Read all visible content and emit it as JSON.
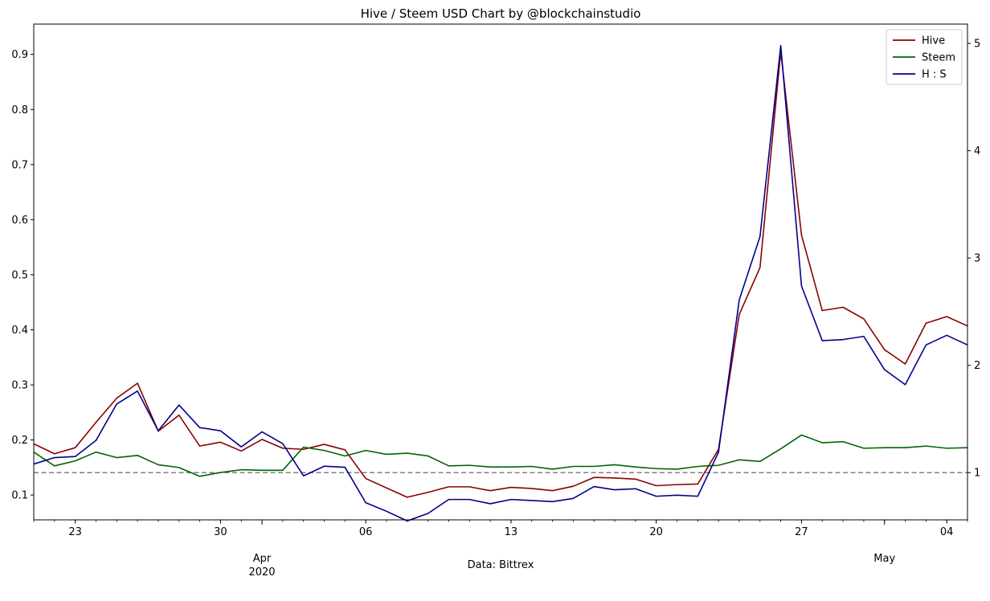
{
  "chart_data": {
    "type": "line",
    "title": "Hive / Steem USD Chart by @blockchainstudio",
    "xlabel": "Data: Bittrex",
    "ylabel": "",
    "y2label": "",
    "grid": false,
    "legend_position": "top-right",
    "x_start": "2020-03-21",
    "x_end": "2020-05-05",
    "x": [
      "2020-03-21",
      "2020-03-22",
      "2020-03-23",
      "2020-03-24",
      "2020-03-25",
      "2020-03-26",
      "2020-03-27",
      "2020-03-28",
      "2020-03-29",
      "2020-03-30",
      "2020-03-31",
      "2020-04-01",
      "2020-04-02",
      "2020-04-03",
      "2020-04-04",
      "2020-04-05",
      "2020-04-06",
      "2020-04-07",
      "2020-04-08",
      "2020-04-09",
      "2020-04-10",
      "2020-04-11",
      "2020-04-12",
      "2020-04-13",
      "2020-04-14",
      "2020-04-15",
      "2020-04-16",
      "2020-04-17",
      "2020-04-18",
      "2020-04-19",
      "2020-04-20",
      "2020-04-21",
      "2020-04-22",
      "2020-04-23",
      "2020-04-24",
      "2020-04-25",
      "2020-04-26",
      "2020-04-27",
      "2020-04-28",
      "2020-04-29",
      "2020-04-30",
      "2020-05-01",
      "2020-05-02",
      "2020-05-03",
      "2020-05-04",
      "2020-05-05"
    ],
    "ylim": [
      0.055,
      0.955
    ],
    "y2lim": [
      0.56,
      5.18
    ],
    "yticks": [
      0.1,
      0.2,
      0.3,
      0.4,
      0.5,
      0.6,
      0.7,
      0.8,
      0.9
    ],
    "ytick_labels": [
      "0.1",
      "0.2",
      "0.3",
      "0.4",
      "0.5",
      "0.6",
      "0.7",
      "0.8",
      "0.9"
    ],
    "y2ticks": [
      1,
      2,
      3,
      4,
      5
    ],
    "y2tick_labels": [
      "1",
      "2",
      "3",
      "4",
      "5"
    ],
    "xticks_major": [
      {
        "date": "2020-03-23",
        "label": "23"
      },
      {
        "date": "2020-03-30",
        "label": "30"
      },
      {
        "date": "2020-04-06",
        "label": "06"
      },
      {
        "date": "2020-04-13",
        "label": "13"
      },
      {
        "date": "2020-04-20",
        "label": "20"
      },
      {
        "date": "2020-04-27",
        "label": "27"
      },
      {
        "date": "2020-05-04",
        "label": "04"
      }
    ],
    "month_labels": [
      {
        "date": "2020-04-01",
        "label": "Apr",
        "sublabel": "2020"
      },
      {
        "date": "2020-05-01",
        "label": "May",
        "sublabel": ""
      }
    ],
    "reference_line": {
      "axis": "right",
      "value": 1.0,
      "color": "#808080",
      "style": "dashed"
    },
    "series": [
      {
        "name": "Hive",
        "axis": "left",
        "color": "#8b0000",
        "values": [
          0.193,
          0.175,
          0.186,
          0.232,
          0.276,
          0.303,
          0.216,
          0.245,
          0.189,
          0.196,
          0.18,
          0.201,
          0.185,
          0.183,
          0.192,
          0.182,
          0.13,
          0.113,
          0.096,
          0.105,
          0.115,
          0.115,
          0.108,
          0.114,
          0.112,
          0.108,
          0.116,
          0.132,
          0.131,
          0.129,
          0.117,
          0.119,
          0.12,
          0.183,
          0.428,
          0.513,
          0.905,
          0.572,
          0.435,
          0.441,
          0.42,
          0.364,
          0.338,
          0.412,
          0.424,
          0.407
        ]
      },
      {
        "name": "Steem",
        "axis": "left",
        "color": "#006400",
        "values": [
          0.178,
          0.153,
          0.162,
          0.178,
          0.168,
          0.172,
          0.155,
          0.15,
          0.134,
          0.141,
          0.146,
          0.145,
          0.145,
          0.187,
          0.181,
          0.171,
          0.181,
          0.174,
          0.176,
          0.171,
          0.153,
          0.154,
          0.151,
          0.151,
          0.152,
          0.147,
          0.152,
          0.152,
          0.155,
          0.151,
          0.148,
          0.147,
          0.152,
          0.154,
          0.164,
          0.161,
          0.184,
          0.209,
          0.195,
          0.197,
          0.185,
          0.186,
          0.186,
          0.189,
          0.185,
          0.186
        ]
      },
      {
        "name": "H : S",
        "axis": "right",
        "color": "#00008b",
        "values": [
          1.08,
          1.14,
          1.15,
          1.3,
          1.64,
          1.76,
          1.39,
          1.63,
          1.42,
          1.39,
          1.24,
          1.38,
          1.27,
          0.97,
          1.06,
          1.05,
          0.72,
          0.64,
          0.55,
          0.62,
          0.75,
          0.75,
          0.71,
          0.75,
          0.74,
          0.73,
          0.76,
          0.87,
          0.84,
          0.85,
          0.78,
          0.79,
          0.78,
          1.19,
          2.61,
          3.2,
          4.98,
          2.74,
          2.23,
          2.24,
          2.27,
          1.96,
          1.82,
          2.19,
          2.28,
          2.19
        ]
      }
    ]
  }
}
